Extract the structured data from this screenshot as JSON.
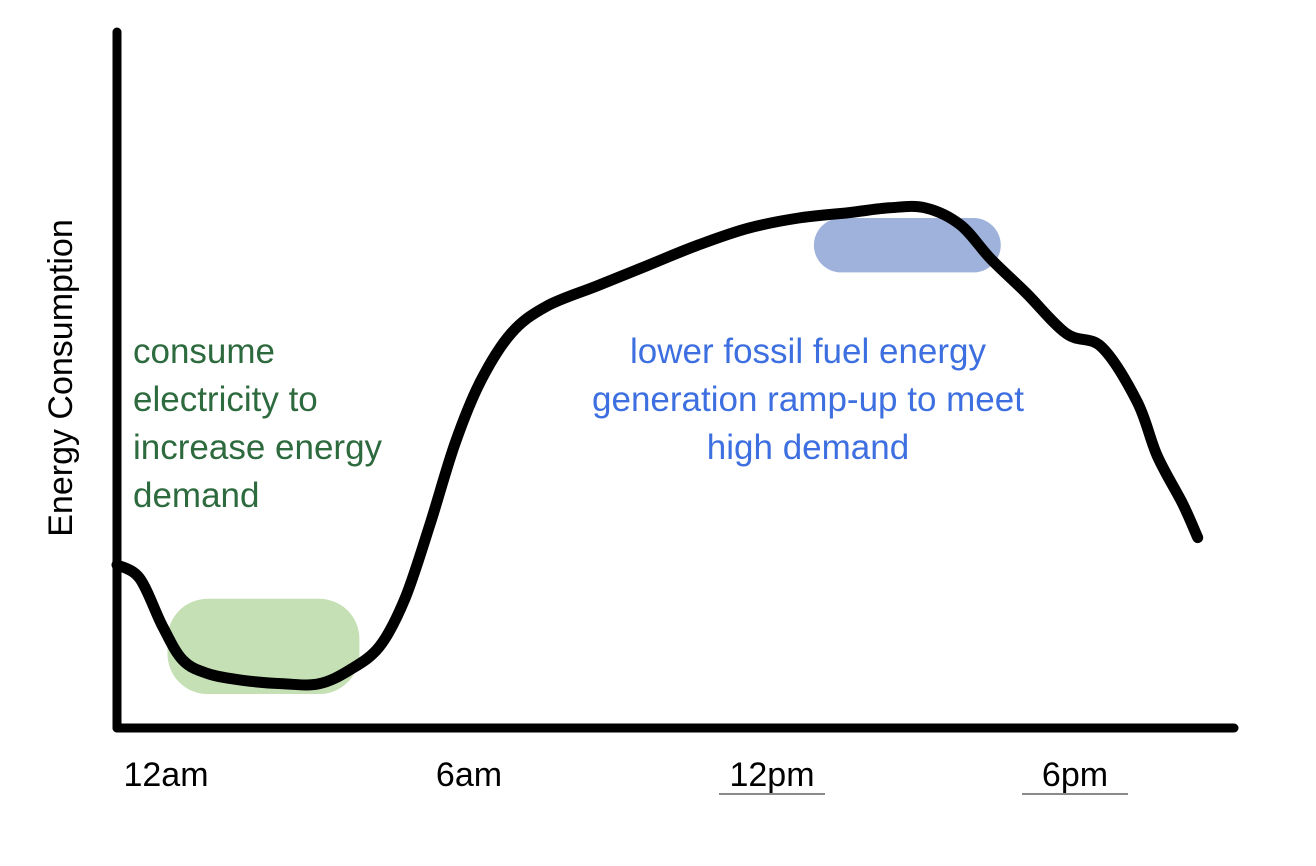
{
  "chart_data": {
    "type": "line",
    "title": "",
    "xlabel": "",
    "ylabel": "Energy Consumption",
    "grid": false,
    "x_ticks": [
      {
        "label": "12am",
        "hour": 0,
        "underlined": false
      },
      {
        "label": "6am",
        "hour": 6,
        "underlined": false
      },
      {
        "label": "12pm",
        "hour": 12,
        "underlined": true
      },
      {
        "label": "6pm",
        "hour": 18,
        "underlined": true
      }
    ],
    "xlim": [
      0,
      24
    ],
    "ylim": [
      0,
      100
    ],
    "series": [
      {
        "color": "#000000",
        "points": [
          [
            0.0,
            24
          ],
          [
            0.45,
            22
          ],
          [
            0.9,
            15
          ],
          [
            1.3,
            10
          ],
          [
            1.8,
            8
          ],
          [
            2.5,
            7
          ],
          [
            3.3,
            6.5
          ],
          [
            4.0,
            6.5
          ],
          [
            4.6,
            8.5
          ],
          [
            5.2,
            12
          ],
          [
            5.7,
            19
          ],
          [
            6.2,
            30
          ],
          [
            6.7,
            42
          ],
          [
            7.2,
            51
          ],
          [
            7.8,
            58
          ],
          [
            8.5,
            62
          ],
          [
            9.5,
            65
          ],
          [
            10.5,
            68
          ],
          [
            11.5,
            71
          ],
          [
            12.5,
            73.5
          ],
          [
            13.5,
            75
          ],
          [
            14.5,
            75.8
          ],
          [
            15.3,
            76.5
          ],
          [
            16.0,
            76.5
          ],
          [
            16.7,
            74
          ],
          [
            17.3,
            69
          ],
          [
            18.0,
            64
          ],
          [
            18.8,
            58
          ],
          [
            19.5,
            56
          ],
          [
            20.2,
            48
          ],
          [
            20.6,
            40
          ],
          [
            21.1,
            33
          ],
          [
            21.4,
            28
          ]
        ]
      }
    ],
    "highlights": [
      {
        "name": "low-demand-region",
        "color": "#c4e0b4",
        "x_range": [
          1.0,
          4.8
        ],
        "y_range": [
          5,
          19
        ]
      },
      {
        "name": "peak-demand-region",
        "color": "#9eb2dc",
        "x_range": [
          13.8,
          17.5
        ],
        "y_range": [
          67,
          75
        ]
      }
    ],
    "annotations": [
      {
        "name": "low-demand-annotation",
        "color": "#2d6a3e",
        "lines": [
          "consume",
          "electricity to",
          "increase energy",
          "demand"
        ]
      },
      {
        "name": "peak-demand-annotation",
        "color": "#3d6fe0",
        "lines": [
          "lower fossil fuel energy",
          "generation ramp-up to meet",
          "high demand"
        ]
      }
    ]
  }
}
